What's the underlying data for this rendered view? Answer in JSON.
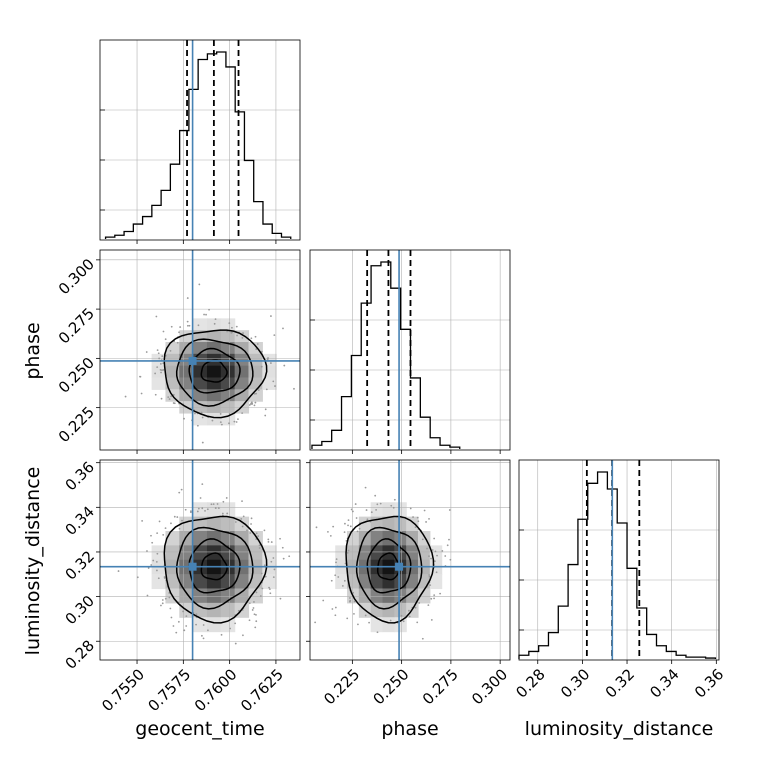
{
  "chart_data": {
    "type": "corner",
    "parameters": [
      {
        "key": "geocent_time",
        "label": "geocent_time",
        "range": [
          0.753,
          0.7638
        ],
        "ticks": [
          0.755,
          0.7575,
          0.76,
          0.7625
        ],
        "tick_labels": [
          "0.7550",
          "0.7575",
          "0.7600",
          "0.7625"
        ],
        "truth": 0.758,
        "quantiles": [
          0.7577,
          0.75915,
          0.76048
        ],
        "histogram": {
          "bin_edges": [
            0.7533,
            0.7538,
            0.7543,
            0.7548,
            0.7553,
            0.7558,
            0.7563,
            0.7568,
            0.7573,
            0.7578,
            0.7583,
            0.7588,
            0.7593,
            0.7598,
            0.7603,
            0.7608,
            0.7613,
            0.7618,
            0.7623,
            0.7628,
            0.7633
          ],
          "counts": [
            0.01,
            0.02,
            0.04,
            0.08,
            0.12,
            0.18,
            0.26,
            0.4,
            0.58,
            0.8,
            0.96,
            0.99,
            1.0,
            0.92,
            0.68,
            0.42,
            0.2,
            0.08,
            0.03,
            0.01
          ]
        }
      },
      {
        "key": "phase",
        "label": "phase",
        "range": [
          0.2035,
          0.305
        ],
        "ticks": [
          0.225,
          0.25,
          0.275,
          0.3
        ],
        "tick_labels": [
          "0.225",
          "0.250",
          "0.275",
          "0.300"
        ],
        "truth": 0.2487,
        "quantiles": [
          0.2325,
          0.2433,
          0.2545
        ],
        "histogram": {
          "bin_edges": [
            0.2045,
            0.2095,
            0.2145,
            0.2195,
            0.2245,
            0.2295,
            0.2345,
            0.2395,
            0.2445,
            0.2495,
            0.2545,
            0.2595,
            0.2645,
            0.2695,
            0.2745,
            0.2795
          ],
          "counts": [
            0.02,
            0.04,
            0.1,
            0.28,
            0.5,
            0.78,
            0.98,
            1.0,
            0.86,
            0.64,
            0.38,
            0.17,
            0.06,
            0.02,
            0.01
          ]
        }
      },
      {
        "key": "luminosity_distance",
        "label": "luminosity_distance",
        "range": [
          0.2716,
          0.3612
        ],
        "ticks": [
          0.28,
          0.3,
          0.32,
          0.34,
          0.36
        ],
        "tick_labels": [
          "0.28",
          "0.30",
          "0.32",
          "0.34",
          "0.36"
        ],
        "truth": 0.3134,
        "quantiles": [
          0.302,
          0.3133,
          0.3255
        ],
        "histogram": {
          "bin_edges": [
            0.2716,
            0.276,
            0.2804,
            0.2848,
            0.2892,
            0.2936,
            0.298,
            0.3024,
            0.3068,
            0.3112,
            0.3156,
            0.32,
            0.3244,
            0.3288,
            0.3332,
            0.3376,
            0.342,
            0.3464,
            0.3508,
            0.3552,
            0.3596
          ],
          "counts": [
            0.02,
            0.04,
            0.07,
            0.14,
            0.28,
            0.5,
            0.74,
            0.93,
            0.99,
            0.9,
            0.72,
            0.48,
            0.27,
            0.13,
            0.07,
            0.04,
            0.02,
            0.01,
            0.01,
            0.005
          ]
        }
      }
    ],
    "pairs": [
      {
        "x": "geocent_time",
        "y": "phase",
        "center": [
          0.75915,
          0.2433
        ],
        "sigma": [
          0.00137,
          0.011
        ],
        "contour_levels": [
          0.5,
          1.0,
          1.5,
          2.0
        ]
      },
      {
        "x": "geocent_time",
        "y": "luminosity_distance",
        "center": [
          0.75915,
          0.3133
        ],
        "sigma": [
          0.00137,
          0.0118
        ],
        "contour_levels": [
          0.5,
          1.0,
          1.5,
          2.0
        ]
      },
      {
        "x": "phase",
        "y": "luminosity_distance",
        "center": [
          0.2433,
          0.3133
        ],
        "sigma": [
          0.011,
          0.0118
        ],
        "contour_levels": [
          0.5,
          1.0,
          1.5,
          2.0
        ]
      }
    ],
    "grid": true,
    "colors": {
      "truth": "#4682b4",
      "histogram": "#000000",
      "scatter": "#9a9a9a"
    }
  }
}
